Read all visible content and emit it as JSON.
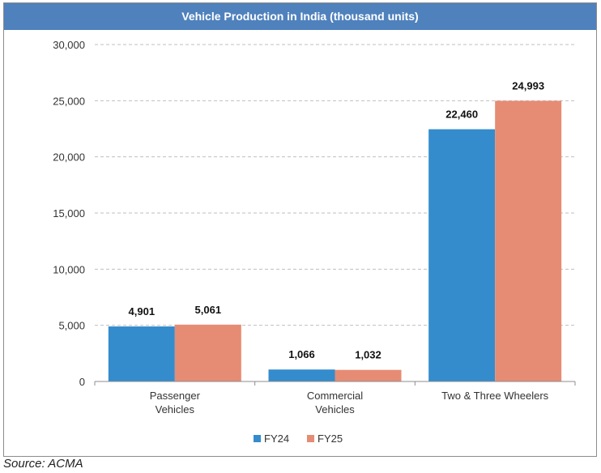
{
  "chart_data": {
    "type": "bar",
    "title": "Vehicle Production in India (thousand units)",
    "xlabel": "",
    "ylabel": "",
    "categories": [
      [
        "Passenger",
        "Vehicles"
      ],
      [
        "Commercial",
        "Vehicles"
      ],
      [
        "Two & Three Wheelers"
      ]
    ],
    "series": [
      {
        "name": "FY24",
        "color": "#348ccd",
        "values": [
          4901,
          1066,
          22460
        ],
        "labels": [
          "4,901",
          "1,066",
          "22,460"
        ]
      },
      {
        "name": "FY25",
        "color": "#e68c74",
        "values": [
          5061,
          1032,
          24993
        ],
        "labels": [
          "5,061",
          "1,032",
          "24,993"
        ]
      }
    ],
    "ylim": [
      0,
      30000
    ],
    "yticks": [
      0,
      5000,
      10000,
      15000,
      20000,
      25000,
      30000
    ],
    "ytick_labels": [
      "0",
      "5,000",
      "10,000",
      "15,000",
      "20,000",
      "25,000",
      "30,000"
    ],
    "grid": true,
    "legend": "bottom-center"
  },
  "colors": {
    "title_bar": "#4f81bd"
  },
  "source": "Source: ACMA"
}
